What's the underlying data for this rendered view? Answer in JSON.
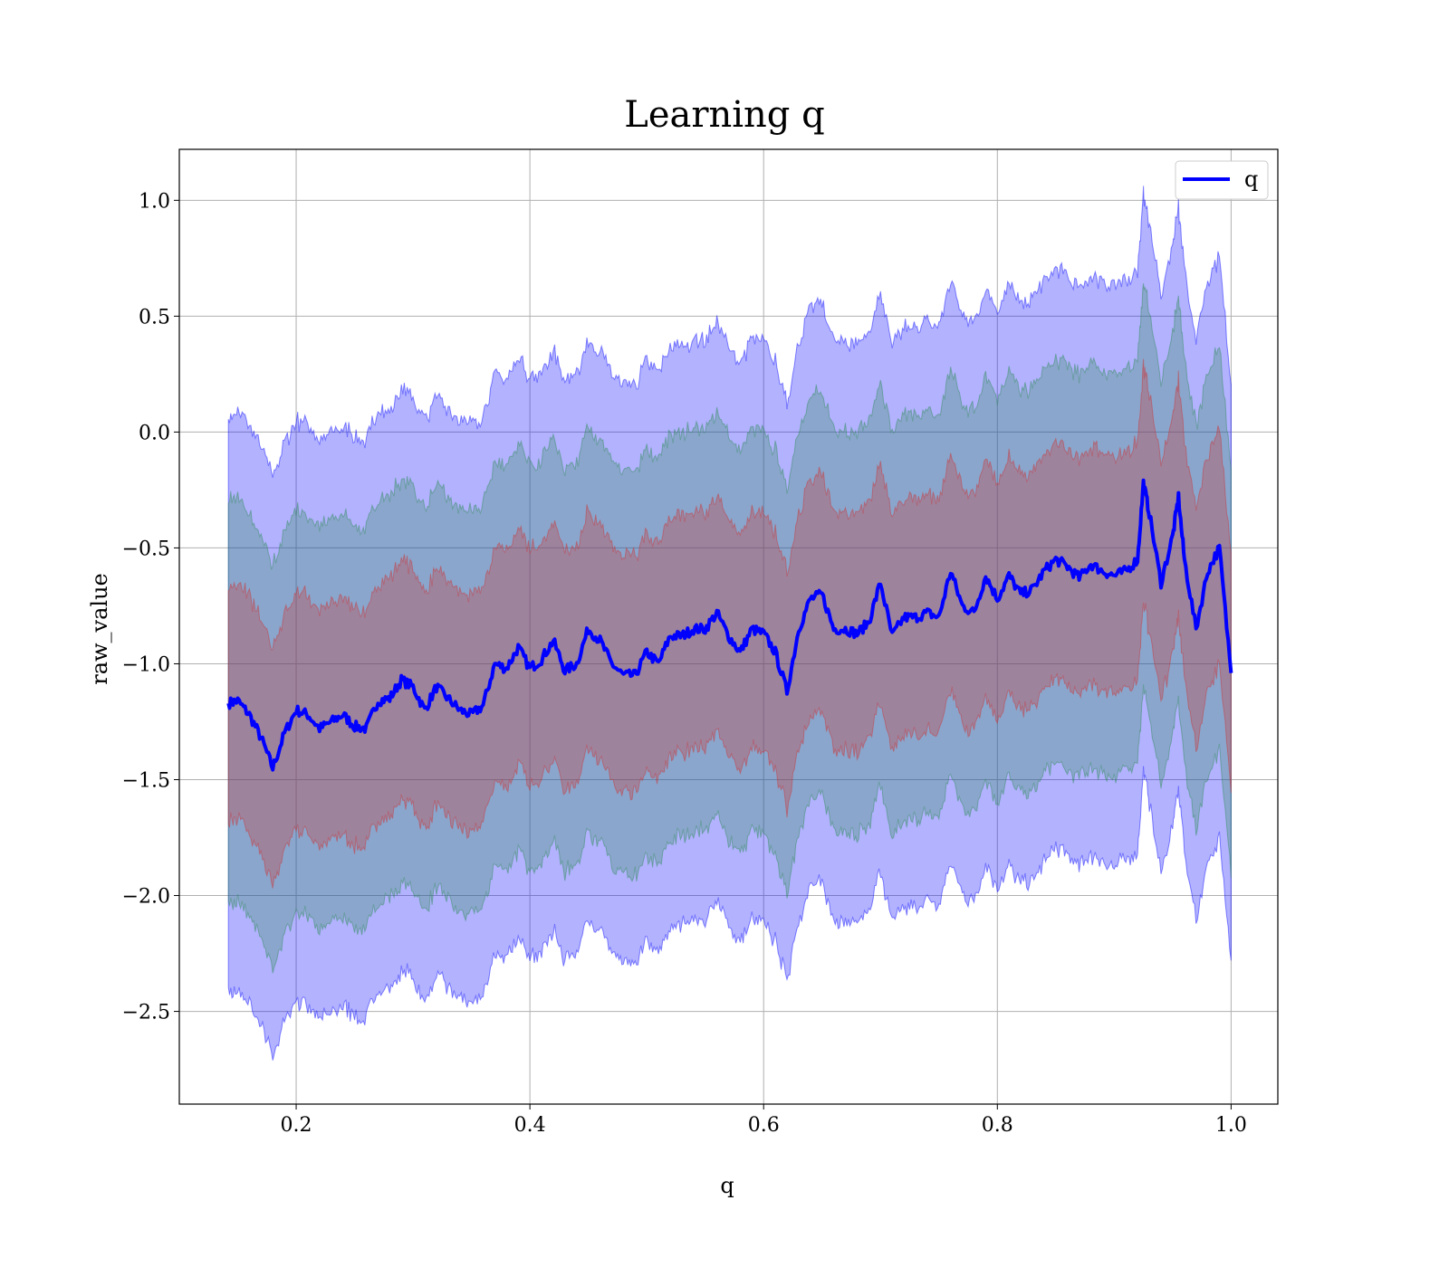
{
  "chart_data": {
    "type": "line",
    "title": "Learning q",
    "xlabel": "q",
    "ylabel": "raw_value",
    "xlim": [
      0.1,
      1.04
    ],
    "ylim": [
      -2.9,
      1.22
    ],
    "xticks": [
      0.2,
      0.4,
      0.6,
      0.8,
      1.0
    ],
    "xtick_labels": [
      "0.2",
      "0.4",
      "0.6",
      "0.8",
      "1.0"
    ],
    "yticks": [
      1.0,
      0.5,
      0.0,
      -0.5,
      -1.0,
      -1.5,
      -2.0,
      -2.5
    ],
    "ytick_labels": [
      "1.0",
      "0.5",
      "0.0",
      "−0.5",
      "−1.0",
      "−1.5",
      "−2.0",
      "−2.5"
    ],
    "grid": true,
    "legend": {
      "placement": "top-right",
      "entries": [
        {
          "label": "q",
          "color": "#0000ff"
        }
      ]
    },
    "band_half_widths": [
      1.25,
      0.87,
      0.51
    ],
    "band_colors": [
      "#0000ff",
      "#2e8b57",
      "#cd3333"
    ],
    "band_alpha": [
      0.3,
      0.3,
      0.3
    ],
    "series": [
      {
        "name": "q",
        "color": "#0000ff",
        "x": [
          0.142,
          0.15,
          0.16,
          0.17,
          0.18,
          0.19,
          0.2,
          0.21,
          0.22,
          0.23,
          0.24,
          0.25,
          0.26,
          0.27,
          0.28,
          0.29,
          0.3,
          0.31,
          0.32,
          0.33,
          0.34,
          0.35,
          0.36,
          0.37,
          0.38,
          0.39,
          0.4,
          0.41,
          0.42,
          0.43,
          0.44,
          0.45,
          0.46,
          0.47,
          0.48,
          0.49,
          0.5,
          0.51,
          0.52,
          0.53,
          0.54,
          0.55,
          0.56,
          0.57,
          0.58,
          0.59,
          0.6,
          0.61,
          0.62,
          0.63,
          0.64,
          0.65,
          0.66,
          0.67,
          0.68,
          0.69,
          0.7,
          0.71,
          0.72,
          0.73,
          0.74,
          0.75,
          0.76,
          0.77,
          0.78,
          0.79,
          0.8,
          0.81,
          0.82,
          0.83,
          0.84,
          0.85,
          0.86,
          0.87,
          0.88,
          0.89,
          0.9,
          0.91,
          0.92,
          0.925,
          0.93,
          0.94,
          0.95,
          0.955,
          0.96,
          0.97,
          0.98,
          0.99,
          1.0
        ],
        "y": [
          -1.17,
          -1.16,
          -1.22,
          -1.32,
          -1.45,
          -1.3,
          -1.2,
          -1.22,
          -1.28,
          -1.25,
          -1.22,
          -1.27,
          -1.28,
          -1.16,
          -1.15,
          -1.07,
          -1.1,
          -1.2,
          -1.1,
          -1.15,
          -1.2,
          -1.22,
          -1.18,
          -1.0,
          -1.02,
          -0.93,
          -1.02,
          -0.98,
          -0.9,
          -1.03,
          -1.0,
          -0.85,
          -0.9,
          -1.0,
          -1.05,
          -1.05,
          -0.95,
          -1.0,
          -0.88,
          -0.88,
          -0.85,
          -0.85,
          -0.78,
          -0.88,
          -0.95,
          -0.85,
          -0.87,
          -0.95,
          -1.12,
          -0.85,
          -0.72,
          -0.7,
          -0.85,
          -0.85,
          -0.87,
          -0.82,
          -0.65,
          -0.88,
          -0.8,
          -0.8,
          -0.78,
          -0.8,
          -0.6,
          -0.75,
          -0.78,
          -0.62,
          -0.72,
          -0.62,
          -0.7,
          -0.68,
          -0.6,
          -0.55,
          -0.58,
          -0.63,
          -0.57,
          -0.6,
          -0.62,
          -0.6,
          -0.55,
          -0.22,
          -0.35,
          -0.65,
          -0.45,
          -0.28,
          -0.55,
          -0.85,
          -0.6,
          -0.5,
          -1.04
        ]
      }
    ]
  }
}
